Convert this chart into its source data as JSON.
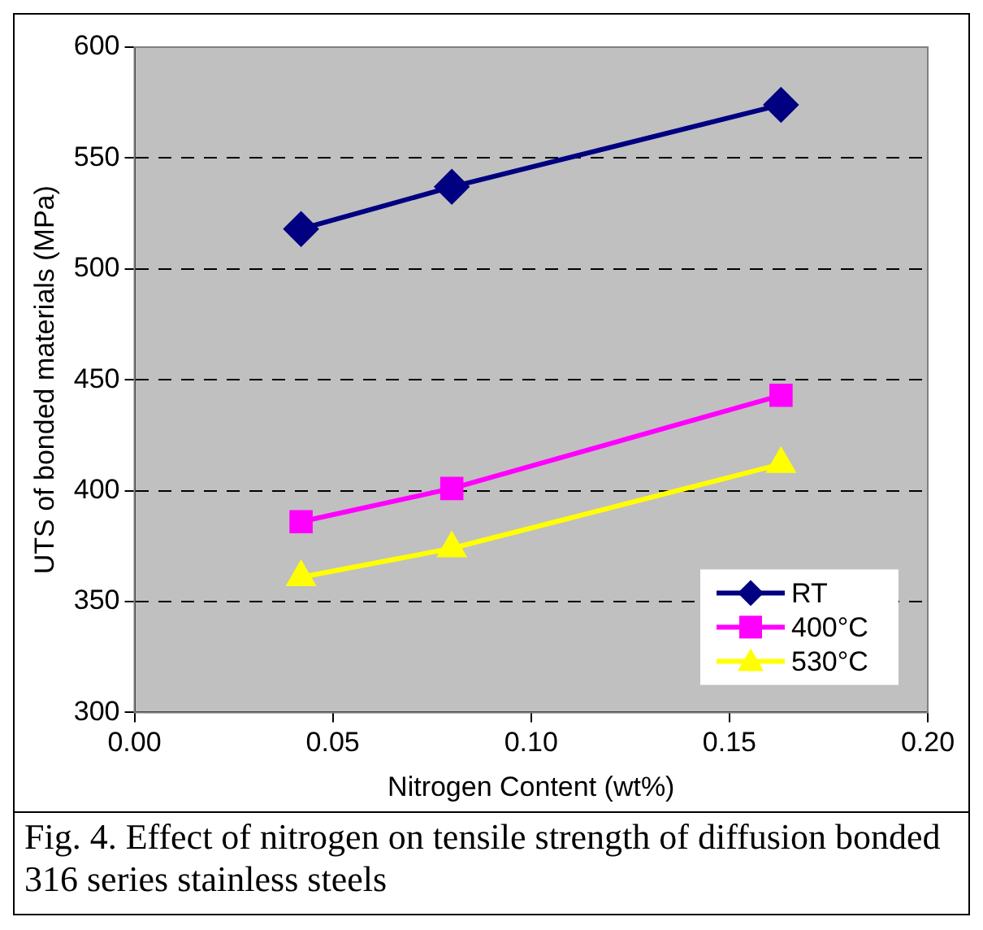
{
  "chart_data": {
    "type": "line",
    "xlabel": "Nitrogen Content (wt%)",
    "ylabel": "UTS of bonded materials (MPa)",
    "xlim": [
      0,
      0.2
    ],
    "xticks": [
      {
        "value": 0,
        "label": "0.00"
      },
      {
        "value": 0.05,
        "label": "0.05"
      },
      {
        "value": 0.1,
        "label": "0.10"
      },
      {
        "value": 0.15,
        "label": "0.15"
      },
      {
        "value": 0.2,
        "label": "0.20"
      }
    ],
    "ylim": [
      300,
      600
    ],
    "yticks": [
      300,
      350,
      400,
      450,
      500,
      550,
      600
    ],
    "x": [
      0.042,
      0.08,
      0.163
    ],
    "series": [
      {
        "name": "RT",
        "color": "#000080",
        "values": [
          518,
          537,
          574
        ],
        "marker": "diamond"
      },
      {
        "name": "400°C",
        "color": "#ff00ff",
        "values": [
          386,
          401,
          443
        ],
        "marker": "square"
      },
      {
        "name": "530°C",
        "color": "#ffff00",
        "values": [
          361,
          374,
          412
        ],
        "marker": "triangle"
      }
    ],
    "grid": "y",
    "legend": "bottom right",
    "line_style": "solid",
    "annotations": [
      "Fig. 4. Effect of nitrogen on tensile strength of diffusion bonded 316 series stainless steels"
    ]
  }
}
